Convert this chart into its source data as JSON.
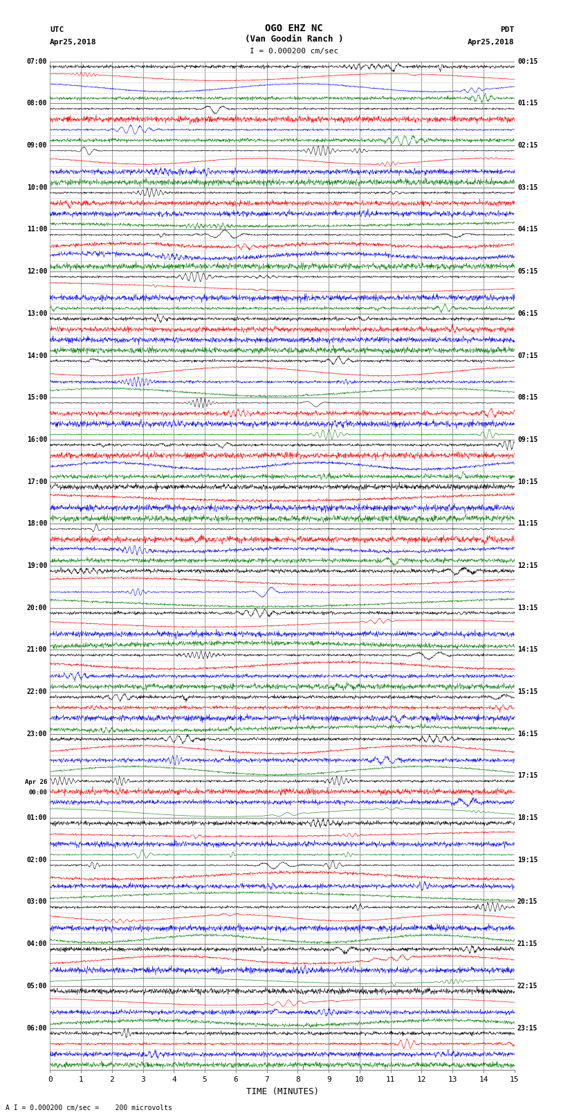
{
  "title_line1": "OGO EHZ NC",
  "title_line2": "(Van Goodin Ranch )",
  "title_line3": "I = 0.000200 cm/sec",
  "left_label_line1": "UTC",
  "left_label_line2": "Apr25,2018",
  "right_label_line1": "PDT",
  "right_label_line2": "Apr25,2018",
  "bottom_label": "TIME (MINUTES)",
  "scale_label": "I = 0.000200 cm/sec =    200 microvolts",
  "scale_marker": "A",
  "xlabel_ticks": [
    0,
    1,
    2,
    3,
    4,
    5,
    6,
    7,
    8,
    9,
    10,
    11,
    12,
    13,
    14,
    15
  ],
  "xlim": [
    0,
    15
  ],
  "background_color": "#ffffff",
  "grid_color_major": "#888888",
  "grid_color_minor": "#cccccc",
  "trace_colors": [
    "#000000",
    "#ff0000",
    "#0000ff",
    "#008000"
  ],
  "n_hours": 24,
  "traces_per_hour": 4,
  "left_times_utc": [
    "07:00",
    "08:00",
    "09:00",
    "10:00",
    "11:00",
    "12:00",
    "13:00",
    "14:00",
    "15:00",
    "16:00",
    "17:00",
    "18:00",
    "19:00",
    "20:00",
    "21:00",
    "22:00",
    "23:00",
    "Apr 26\n00:00",
    "01:00",
    "02:00",
    "03:00",
    "04:00",
    "05:00",
    "06:00"
  ],
  "right_times_pdt": [
    "00:15",
    "01:15",
    "02:15",
    "03:15",
    "04:15",
    "05:15",
    "06:15",
    "07:15",
    "08:15",
    "09:15",
    "10:15",
    "11:15",
    "12:15",
    "13:15",
    "14:15",
    "15:15",
    "16:15",
    "17:15",
    "18:15",
    "19:15",
    "20:15",
    "21:15",
    "22:15",
    "23:15"
  ],
  "seed": 42
}
